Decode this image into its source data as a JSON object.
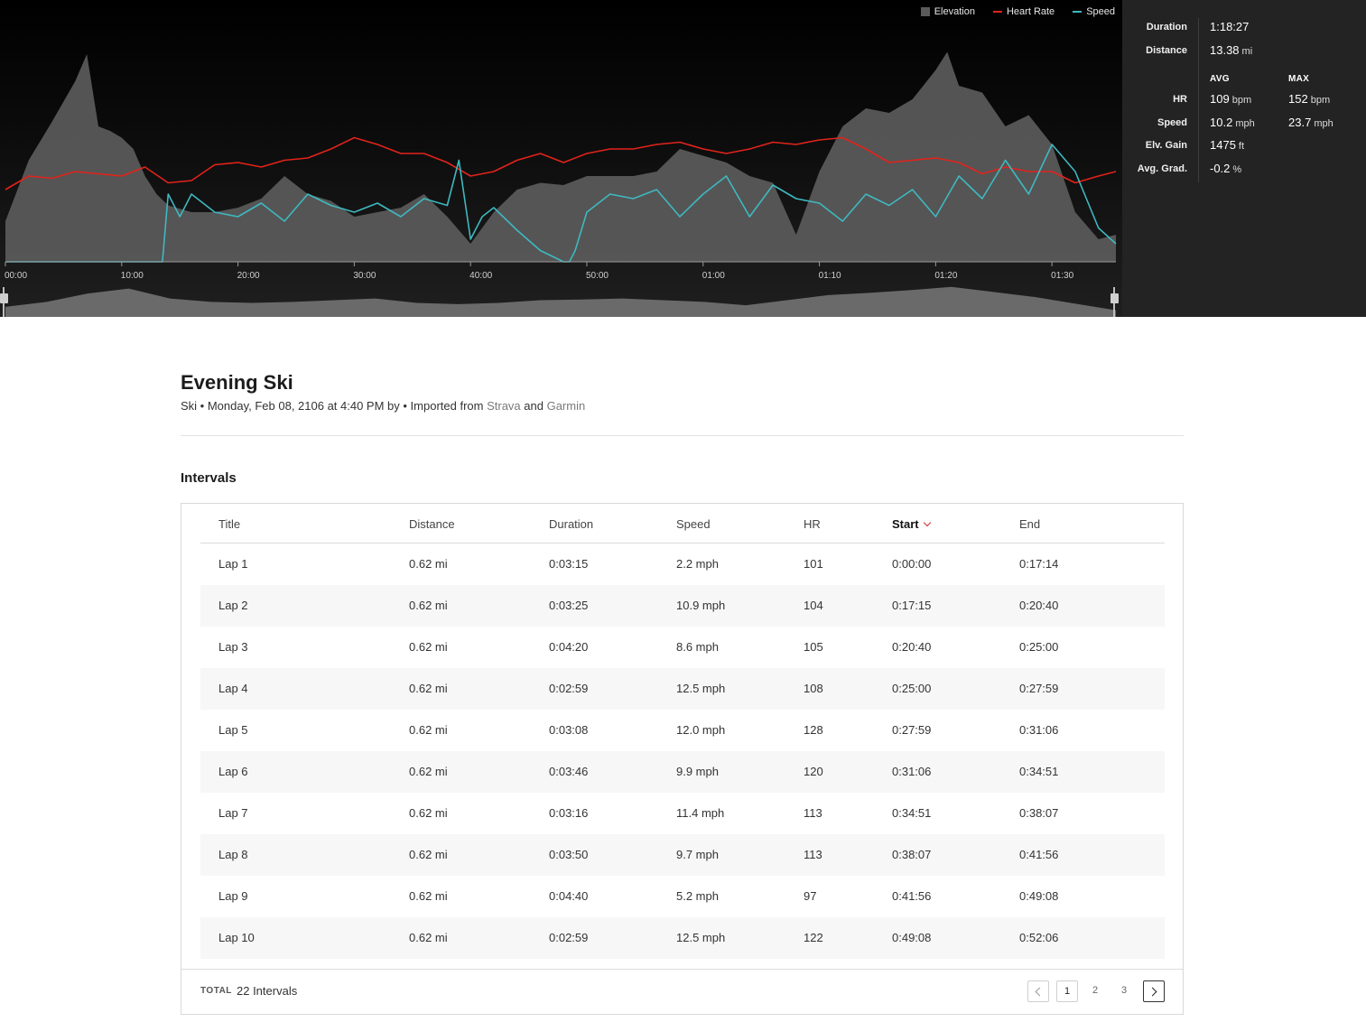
{
  "legend": [
    {
      "label": "Elevation",
      "color": "#5b5b5b",
      "kind": "area"
    },
    {
      "label": "Heart Rate",
      "color": "#e2231a",
      "kind": "line"
    },
    {
      "label": "Speed",
      "color": "#3fb8c0",
      "kind": "line"
    }
  ],
  "chart_data": {
    "type": "line",
    "x_ticks": [
      "00:00",
      "10:00",
      "20:00",
      "30:00",
      "40:00",
      "50:00",
      "01:00",
      "01:10",
      "01:20",
      "01:30"
    ],
    "series": [
      {
        "name": "Elevation",
        "kind": "area",
        "color": "#5b5b5b",
        "x_minutes": [
          0,
          2,
          4,
          6,
          7,
          8,
          9,
          10,
          11,
          12,
          13,
          14,
          16,
          18,
          20,
          22,
          24,
          26,
          28,
          30,
          32,
          34,
          36,
          38,
          40,
          42,
          44,
          46,
          48,
          50,
          52,
          54,
          56,
          58,
          60,
          62,
          64,
          66,
          68,
          70,
          72,
          74,
          76,
          78,
          80,
          81,
          82,
          84,
          86,
          88,
          90,
          92,
          94,
          95.5
        ],
        "values": [
          0.18,
          0.45,
          0.62,
          0.8,
          0.92,
          0.6,
          0.58,
          0.55,
          0.5,
          0.38,
          0.3,
          0.25,
          0.22,
          0.22,
          0.24,
          0.28,
          0.38,
          0.3,
          0.27,
          0.2,
          0.22,
          0.24,
          0.3,
          0.2,
          0.08,
          0.22,
          0.32,
          0.35,
          0.34,
          0.38,
          0.38,
          0.38,
          0.4,
          0.5,
          0.47,
          0.44,
          0.38,
          0.35,
          0.12,
          0.4,
          0.6,
          0.68,
          0.66,
          0.72,
          0.85,
          0.93,
          0.78,
          0.75,
          0.6,
          0.65,
          0.52,
          0.22,
          0.1,
          0.12
        ]
      },
      {
        "name": "Heart Rate",
        "kind": "line",
        "color": "#e2231a",
        "x_minutes": [
          0,
          2,
          4,
          6,
          8,
          10,
          12,
          14,
          16,
          18,
          20,
          22,
          24,
          26,
          28,
          30,
          32,
          34,
          36,
          38,
          40,
          42,
          44,
          46,
          48,
          50,
          52,
          54,
          56,
          58,
          60,
          62,
          64,
          66,
          68,
          70,
          72,
          74,
          76,
          78,
          80,
          82,
          84,
          86,
          88,
          90,
          92,
          94,
          95.5
        ],
        "values": [
          0.32,
          0.38,
          0.37,
          0.4,
          0.39,
          0.38,
          0.42,
          0.35,
          0.36,
          0.43,
          0.44,
          0.42,
          0.45,
          0.46,
          0.5,
          0.55,
          0.52,
          0.48,
          0.48,
          0.44,
          0.38,
          0.4,
          0.45,
          0.48,
          0.44,
          0.48,
          0.5,
          0.5,
          0.52,
          0.53,
          0.5,
          0.48,
          0.5,
          0.53,
          0.52,
          0.54,
          0.55,
          0.5,
          0.44,
          0.45,
          0.46,
          0.44,
          0.39,
          0.42,
          0.4,
          0.4,
          0.35,
          0.38,
          0.4
        ]
      },
      {
        "name": "Speed",
        "kind": "line",
        "color": "#3fb8c0",
        "x_minutes": [
          0,
          2,
          4,
          6,
          8,
          10,
          12,
          13.5,
          14,
          15,
          16,
          18,
          20,
          22,
          24,
          26,
          28,
          30,
          32,
          34,
          36,
          38,
          39,
          40,
          41,
          42,
          44,
          46,
          48,
          48.5,
          49,
          50,
          52,
          54,
          56,
          58,
          60,
          62,
          64,
          66,
          68,
          70,
          72,
          74,
          76,
          78,
          80,
          82,
          84,
          86,
          88,
          90,
          92,
          94,
          95.5
        ],
        "values": [
          0.0,
          0.0,
          0.0,
          0.0,
          0.0,
          0.0,
          0.0,
          0.0,
          0.3,
          0.2,
          0.3,
          0.22,
          0.2,
          0.26,
          0.18,
          0.3,
          0.25,
          0.22,
          0.26,
          0.2,
          0.28,
          0.25,
          0.45,
          0.1,
          0.2,
          0.24,
          0.14,
          0.05,
          0.0,
          0.0,
          0.05,
          0.22,
          0.3,
          0.28,
          0.32,
          0.2,
          0.3,
          0.38,
          0.2,
          0.34,
          0.28,
          0.26,
          0.18,
          0.3,
          0.25,
          0.32,
          0.2,
          0.38,
          0.28,
          0.45,
          0.3,
          0.52,
          0.4,
          0.15,
          0.08
        ]
      }
    ],
    "overview_elevation": [
      0.3,
      0.45,
      0.7,
      0.85,
      0.55,
      0.45,
      0.42,
      0.45,
      0.5,
      0.55,
      0.42,
      0.38,
      0.42,
      0.5,
      0.52,
      0.55,
      0.5,
      0.45,
      0.35,
      0.5,
      0.65,
      0.72,
      0.8,
      0.9,
      0.75,
      0.6,
      0.4,
      0.2
    ]
  },
  "stats": {
    "duration_label": "Duration",
    "duration_value": "1:18:27",
    "distance_label": "Distance",
    "distance_value": "13.38",
    "distance_unit": "mi",
    "avg_head": "AVG",
    "max_head": "MAX",
    "hr_label": "HR",
    "hr_avg": "109",
    "hr_avg_unit": "bpm",
    "hr_max": "152",
    "hr_max_unit": "bpm",
    "speed_label": "Speed",
    "speed_avg": "10.2",
    "speed_avg_unit": "mph",
    "speed_max": "23.7",
    "speed_max_unit": "mph",
    "elev_label": "Elv. Gain",
    "elev_value": "1475",
    "elev_unit": "ft",
    "grad_label": "Avg. Grad.",
    "grad_value": "-0.2",
    "grad_unit": "%"
  },
  "activity": {
    "title": "Evening Ski",
    "meta_prefix": "Ski • Monday, Feb 08, 2106 at 4:40 PM by • Imported from ",
    "source_1": "Strava",
    "meta_and": " and ",
    "source_2": "Garmin"
  },
  "intervals": {
    "heading": "Intervals",
    "columns": [
      "Title",
      "Distance",
      "Duration",
      "Speed",
      "HR",
      "Start",
      "End"
    ],
    "sorted_column": "Start",
    "rows": [
      [
        "Lap 1",
        "0.62 mi",
        "0:03:15",
        "2.2 mph",
        "101",
        "0:00:00",
        "0:17:14"
      ],
      [
        "Lap 2",
        "0.62 mi",
        "0:03:25",
        "10.9 mph",
        "104",
        "0:17:15",
        "0:20:40"
      ],
      [
        "Lap 3",
        "0.62 mi",
        "0:04:20",
        "8.6 mph",
        "105",
        "0:20:40",
        "0:25:00"
      ],
      [
        "Lap 4",
        "0.62 mi",
        "0:02:59",
        "12.5 mph",
        "108",
        "0:25:00",
        "0:27:59"
      ],
      [
        "Lap 5",
        "0.62 mi",
        "0:03:08",
        "12.0 mph",
        "128",
        "0:27:59",
        "0:31:06"
      ],
      [
        "Lap 6",
        "0.62 mi",
        "0:03:46",
        "9.9 mph",
        "120",
        "0:31:06",
        "0:34:51"
      ],
      [
        "Lap 7",
        "0.62 mi",
        "0:03:16",
        "11.4 mph",
        "113",
        "0:34:51",
        "0:38:07"
      ],
      [
        "Lap 8",
        "0.62 mi",
        "0:03:50",
        "9.7 mph",
        "113",
        "0:38:07",
        "0:41:56"
      ],
      [
        "Lap 9",
        "0.62 mi",
        "0:04:40",
        "5.2 mph",
        "97",
        "0:41:56",
        "0:49:08"
      ],
      [
        "Lap 10",
        "0.62 mi",
        "0:02:59",
        "12.5 mph",
        "122",
        "0:49:08",
        "0:52:06"
      ]
    ],
    "total_label": "TOTAL",
    "total_text": "22 Intervals",
    "pages": [
      "1",
      "2",
      "3"
    ],
    "current_page": "1"
  }
}
